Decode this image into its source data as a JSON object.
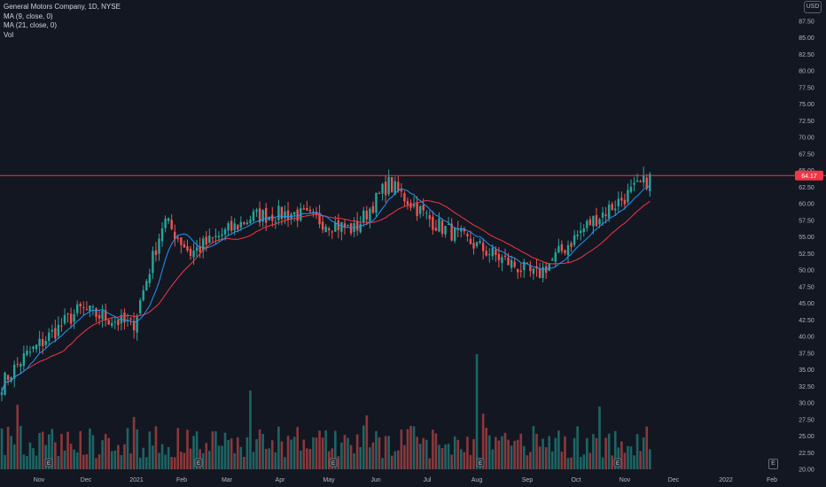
{
  "legend": {
    "symbol": "General Motors Company, 1D, NYSE",
    "ma9": "MA (9, close, 0)",
    "ma21": "MA (21, close, 0)",
    "vol": "Vol"
  },
  "currency": "USD",
  "price_tag": "64.17",
  "earnings_marker": "E",
  "colors": {
    "background": "#131722",
    "up": "#26a69a",
    "down": "#ef5350",
    "ma9": "#2196f3",
    "ma21": "#f23645",
    "hline": "#f23645",
    "text": "#b2b5be"
  },
  "chart_data": {
    "type": "candlestick",
    "ylim": [
      20,
      90
    ],
    "y_ticks": [
      20.0,
      22.5,
      25.0,
      27.5,
      30.0,
      32.5,
      35.0,
      37.5,
      40.0,
      42.5,
      45.0,
      47.5,
      50.0,
      52.5,
      55.0,
      57.5,
      60.0,
      62.5,
      65.0,
      67.5,
      70.0,
      72.5,
      75.0,
      77.5,
      80.0,
      82.5,
      85.0,
      87.5
    ],
    "x_ticks": [
      "Nov",
      "Dec",
      "2021",
      "Feb",
      "Mar",
      "Apr",
      "May",
      "Jun",
      "Jul",
      "Aug",
      "Sep",
      "Oct",
      "Nov",
      "Dec",
      "2022",
      "Feb"
    ],
    "horizontal_line": 64.17,
    "close_path": [
      {
        "month": "Nov 2020",
        "close": 32.5
      },
      {
        "month": "Nov mid",
        "close": 36.5
      },
      {
        "month": "Dec 2020",
        "close": 44.0
      },
      {
        "month": "Dec end",
        "close": 41.5
      },
      {
        "month": "Jan mid 2021",
        "close": 57.5
      },
      {
        "month": "Feb 2021",
        "close": 52.5
      },
      {
        "month": "Mar 2021",
        "close": 58.0
      },
      {
        "month": "Apr 2021",
        "close": 58.5
      },
      {
        "month": "May 2021",
        "close": 56.0
      },
      {
        "month": "Jun 2021",
        "close": 63.0
      },
      {
        "month": "Jul 2021",
        "close": 57.0
      },
      {
        "month": "Aug 2021",
        "close": 52.0
      },
      {
        "month": "Sep 2021",
        "close": 49.0
      },
      {
        "month": "Oct 2021",
        "close": 57.0
      },
      {
        "month": "Nov 2021",
        "close": 64.2
      }
    ],
    "series": [
      {
        "name": "MA (9, close, 0)"
      },
      {
        "name": "MA (21, close, 0)"
      },
      {
        "name": "Vol"
      }
    ]
  }
}
